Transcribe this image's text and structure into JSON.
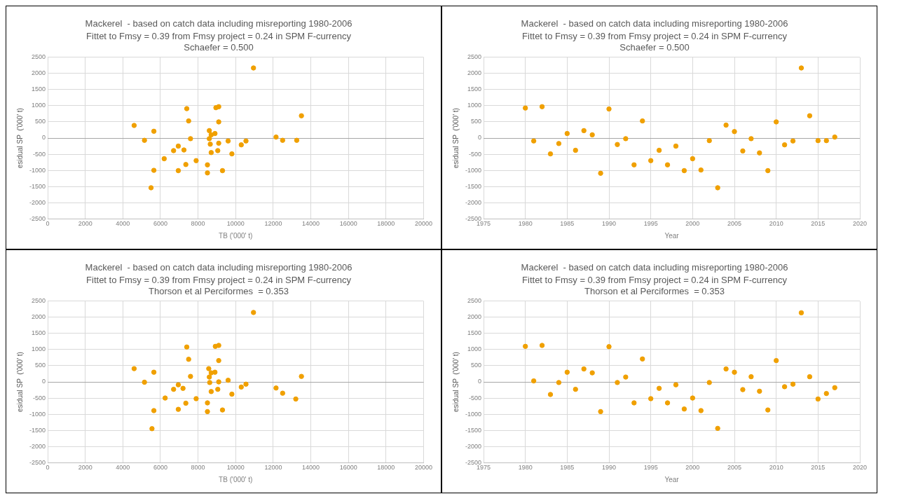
{
  "chart_data": [
    {
      "type": "scatter",
      "title": "Mackerel  - based on catch data including misreporting 1980-2006",
      "subtitle": "Fittet to Fmsy = 0.39 from Fmsy project = 0.24 in SPM F-currency\nSchaefer = 0.500",
      "xlabel": "TB ('000' t)",
      "ylabel": "esidual SP  ('000' t)",
      "xlim": [
        0,
        20000
      ],
      "xticks": [
        0,
        2000,
        4000,
        6000,
        8000,
        10000,
        12000,
        14000,
        16000,
        18000,
        20000
      ],
      "ylim": [
        -2500,
        2500
      ],
      "yticks": [
        -2500,
        -2000,
        -1500,
        -1000,
        -500,
        0,
        500,
        1000,
        1500,
        2000,
        2500
      ],
      "grid": true,
      "legend": false,
      "marker": "circle",
      "series": [
        {
          "color": "#f0a000",
          "x": [
            4600,
            5150,
            5650,
            5650,
            5500,
            6200,
            6700,
            6950,
            6950,
            7250,
            7350,
            7400,
            7500,
            7600,
            7900,
            8500,
            8500,
            8600,
            8600,
            8650,
            8700,
            8700,
            8900,
            8950,
            9050,
            9100,
            9100,
            9100,
            9300,
            9600,
            9800,
            10300,
            10550,
            10950,
            12150,
            12500,
            13250,
            13500
          ],
          "values": [
            390,
            -70,
            210,
            -1000,
            -1540,
            -640,
            -390,
            -250,
            -1010,
            -370,
            -820,
            910,
            530,
            -20,
            -700,
            -830,
            -1080,
            230,
            -20,
            -190,
            100,
            -450,
            140,
            940,
            -390,
            -160,
            970,
            500,
            -1010,
            -90,
            -490,
            -210,
            -90,
            2170,
            30,
            -70,
            -70,
            690
          ]
        }
      ]
    },
    {
      "type": "scatter",
      "title": "Mackerel  - based on catch data including misreporting 1980-2006",
      "subtitle": "Fittet to Fmsy = 0.39 from Fmsy project = 0.24 in SPM F-currency\nSchaefer = 0.500",
      "xlabel": "Year",
      "ylabel": "esidual SP  ('000' t)",
      "xlim": [
        1975,
        2020
      ],
      "xticks": [
        1975,
        1980,
        1985,
        1990,
        1995,
        2000,
        2005,
        2010,
        2015,
        2020
      ],
      "ylim": [
        -2500,
        2500
      ],
      "yticks": [
        -2500,
        -2000,
        -1500,
        -1000,
        -500,
        0,
        500,
        1000,
        1500,
        2000,
        2500
      ],
      "grid": true,
      "legend": false,
      "marker": "circle",
      "series": [
        {
          "color": "#f0a000",
          "x": [
            1980,
            1981,
            1982,
            1983,
            1984,
            1985,
            1986,
            1987,
            1988,
            1989,
            1990,
            1991,
            1992,
            1993,
            1994,
            1995,
            1996,
            1997,
            1998,
            1999,
            2000,
            2001,
            2002,
            2003,
            2004,
            2005,
            2006,
            2007,
            2008,
            2009,
            2010,
            2011,
            2012,
            2013,
            2014,
            2015,
            2016,
            2017
          ],
          "values": [
            930,
            -90,
            970,
            -490,
            -170,
            140,
            -380,
            230,
            100,
            -1090,
            900,
            -200,
            -20,
            -830,
            530,
            -700,
            -380,
            -830,
            -250,
            -1010,
            -640,
            -990,
            -80,
            -1540,
            400,
            200,
            -400,
            -20,
            -460,
            -1010,
            500,
            -210,
            -90,
            2170,
            690,
            -80,
            -80,
            30
          ]
        }
      ]
    },
    {
      "type": "scatter",
      "title": "Mackerel  - based on catch data including misreporting 1980-2006",
      "subtitle": "Fittet to Fmsy = 0.39 from Fmsy project = 0.24 in SPM F-currency\nThorson et al Perciformes  = 0.353",
      "xlabel": "TB ('000' t)",
      "ylabel": "esidual SP  ('000' t)",
      "xlim": [
        0,
        20000
      ],
      "xticks": [
        0,
        2000,
        4000,
        6000,
        8000,
        10000,
        12000,
        14000,
        16000,
        18000,
        20000
      ],
      "ylim": [
        -2500,
        2500
      ],
      "yticks": [
        -2500,
        -2000,
        -1500,
        -1000,
        -500,
        0,
        500,
        1000,
        1500,
        2000,
        2500
      ],
      "grid": true,
      "legend": false,
      "marker": "circle",
      "series": [
        {
          "color": "#f0a000",
          "x": [
            4600,
            5150,
            5650,
            5650,
            5550,
            6250,
            6700,
            6950,
            6950,
            7200,
            7350,
            7400,
            7500,
            7600,
            7900,
            8500,
            8500,
            8570,
            8600,
            8620,
            8700,
            8700,
            8900,
            8920,
            9050,
            9100,
            9100,
            9100,
            9300,
            9600,
            9800,
            10300,
            10550,
            10950,
            12150,
            12500,
            13200,
            13500
          ],
          "values": [
            410,
            -10,
            300,
            -890,
            -1450,
            -500,
            -230,
            -90,
            -850,
            -200,
            -660,
            1080,
            700,
            170,
            -520,
            -650,
            -920,
            410,
            150,
            -20,
            280,
            -300,
            300,
            1100,
            -230,
            0,
            1130,
            660,
            -870,
            50,
            -380,
            -160,
            -70,
            2150,
            -190,
            -350,
            -530,
            170
          ]
        }
      ]
    },
    {
      "type": "scatter",
      "title": "Mackerel  - based on catch data including misreporting 1980-2006",
      "subtitle": "Fittet to Fmsy = 0.39 from Fmsy project = 0.24 in SPM F-currency\nThorson et al Perciformes  = 0.353",
      "xlabel": "Year",
      "ylabel": "esidual SP  ('000' t)",
      "xlim": [
        1975,
        2020
      ],
      "xticks": [
        1975,
        1980,
        1985,
        1990,
        1995,
        2000,
        2005,
        2010,
        2015,
        2020
      ],
      "ylim": [
        -2500,
        2500
      ],
      "yticks": [
        -2500,
        -2000,
        -1500,
        -1000,
        -500,
        0,
        500,
        1000,
        1500,
        2000,
        2500
      ],
      "grid": true,
      "legend": false,
      "marker": "circle",
      "series": [
        {
          "color": "#f0a000",
          "x": [
            1980,
            1981,
            1982,
            1983,
            1984,
            1985,
            1986,
            1987,
            1988,
            1989,
            1990,
            1991,
            1992,
            1993,
            1994,
            1995,
            1996,
            1997,
            1998,
            1999,
            2000,
            2001,
            2002,
            2003,
            2004,
            2005,
            2006,
            2007,
            2008,
            2009,
            2010,
            2011,
            2012,
            2013,
            2014,
            2015,
            2016,
            2017
          ],
          "values": [
            1100,
            30,
            1130,
            -390,
            -20,
            300,
            -230,
            400,
            280,
            -920,
            1090,
            -20,
            150,
            -650,
            710,
            -520,
            -200,
            -650,
            -90,
            -840,
            -500,
            -890,
            -20,
            -1440,
            400,
            300,
            -240,
            160,
            -290,
            -870,
            660,
            -150,
            -70,
            2140,
            160,
            -530,
            -360,
            -180
          ]
        }
      ]
    }
  ]
}
